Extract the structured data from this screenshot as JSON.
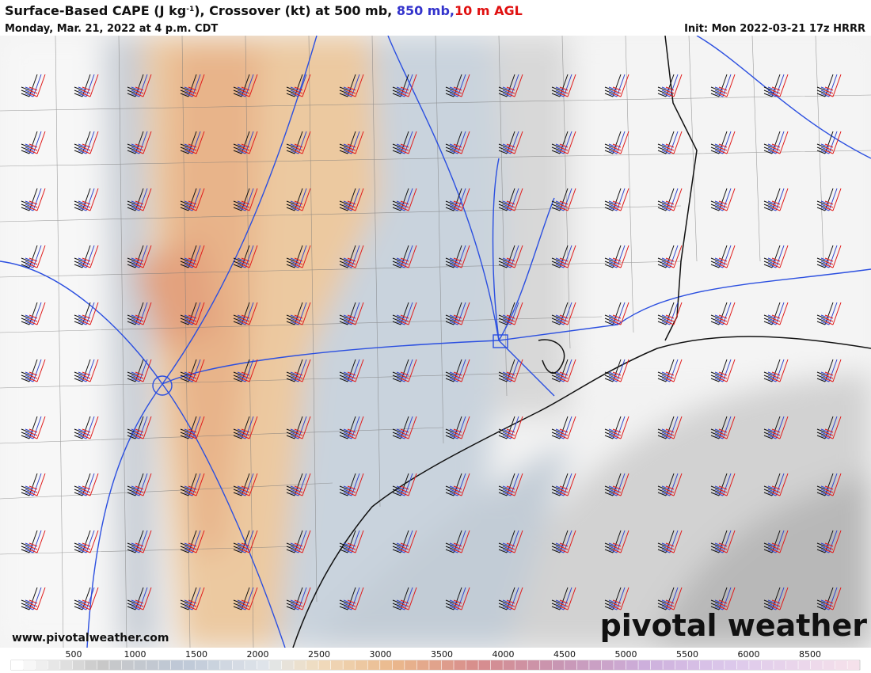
{
  "header": {
    "title": {
      "main": "Surface-Based CAPE (J kg",
      "superscript": "-1",
      "rest": "), Crossover (kt) at 500 mb, ",
      "blue": "850 mb,",
      "red": "10 m AGL"
    },
    "valid": "Monday, Mar. 21, 2022 at 4 p.m. CDT",
    "init": "Init: Mon 2022-03-21 17z HRRR"
  },
  "map": {
    "website": "www.pivotalweather.com",
    "logo": "pivotal weather"
  },
  "colorbar": {
    "labels": [
      500,
      1000,
      1500,
      2000,
      2500,
      3000,
      3500,
      4000,
      4500,
      5000,
      5500,
      6000,
      8500
    ]
  }
}
